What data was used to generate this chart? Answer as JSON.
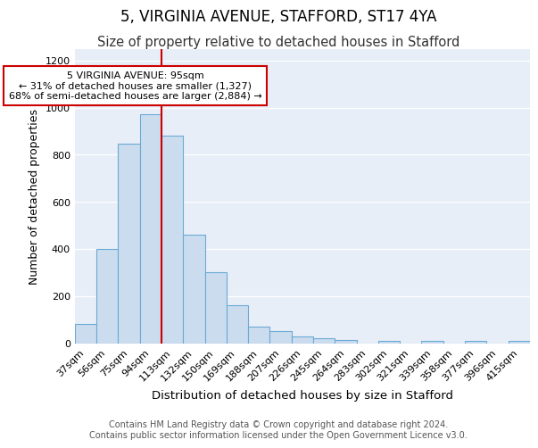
{
  "title1": "5, VIRGINIA AVENUE, STAFFORD, ST17 4YA",
  "title2": "Size of property relative to detached houses in Stafford",
  "xlabel": "Distribution of detached houses by size in Stafford",
  "ylabel": "Number of detached properties",
  "categories": [
    "37sqm",
    "56sqm",
    "75sqm",
    "94sqm",
    "113sqm",
    "132sqm",
    "150sqm",
    "169sqm",
    "188sqm",
    "207sqm",
    "226sqm",
    "245sqm",
    "264sqm",
    "283sqm",
    "302sqm",
    "321sqm",
    "339sqm",
    "358sqm",
    "377sqm",
    "396sqm",
    "415sqm"
  ],
  "values": [
    80,
    400,
    845,
    970,
    880,
    460,
    300,
    160,
    70,
    50,
    30,
    20,
    15,
    0,
    10,
    0,
    10,
    0,
    10,
    0,
    10
  ],
  "bar_color": "#ccdcef",
  "bar_edge_color": "#6aaad4",
  "annotation_text": "5 VIRGINIA AVENUE: 95sqm\n← 31% of detached houses are smaller (1,327)\n68% of semi-detached houses are larger (2,884) →",
  "annotation_box_facecolor": "#ffffff",
  "annotation_box_edgecolor": "#cc0000",
  "red_line_index": 3.5,
  "ylim": [
    0,
    1250
  ],
  "yticks": [
    0,
    200,
    400,
    600,
    800,
    1000,
    1200
  ],
  "plot_bg_color": "#e8eef8",
  "footer": "Contains HM Land Registry data © Crown copyright and database right 2024.\nContains public sector information licensed under the Open Government Licence v3.0.",
  "title1_fontsize": 12,
  "title2_fontsize": 10.5,
  "xlabel_fontsize": 9.5,
  "ylabel_fontsize": 9,
  "tick_fontsize": 8,
  "footer_fontsize": 7,
  "annot_fontsize": 8
}
